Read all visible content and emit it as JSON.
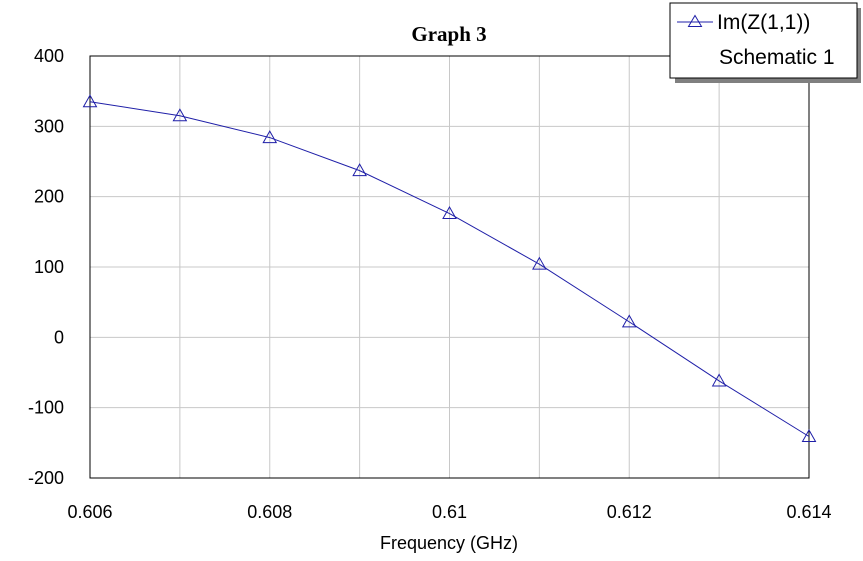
{
  "chart_data": {
    "type": "line",
    "title": "Graph 3",
    "xlabel": "Frequency (GHz)",
    "ylabel": "",
    "xlim": [
      0.606,
      0.614
    ],
    "ylim": [
      -200,
      400
    ],
    "x_ticks": [
      "0.606",
      "0.608",
      "0.61",
      "0.612",
      "0.614"
    ],
    "x_tick_values": [
      0.606,
      0.608,
      0.61,
      0.612,
      0.614
    ],
    "y_ticks": [
      "400",
      "300",
      "200",
      "100",
      "0",
      "-100",
      "-200"
    ],
    "y_tick_values": [
      400,
      300,
      200,
      100,
      0,
      -100,
      -200
    ],
    "x_minor_step": 0.001,
    "grid": true,
    "legend_position": "top-right",
    "series": [
      {
        "name": "Im(Z(1,1))",
        "legend_sub": "Schematic 1",
        "color": "#1f1fa8",
        "marker": "triangle",
        "x": [
          0.606,
          0.607,
          0.608,
          0.609,
          0.61,
          0.611,
          0.612,
          0.613,
          0.614
        ],
        "values": [
          335,
          315,
          284,
          237,
          176,
          104,
          22,
          -62,
          -141
        ]
      }
    ]
  }
}
